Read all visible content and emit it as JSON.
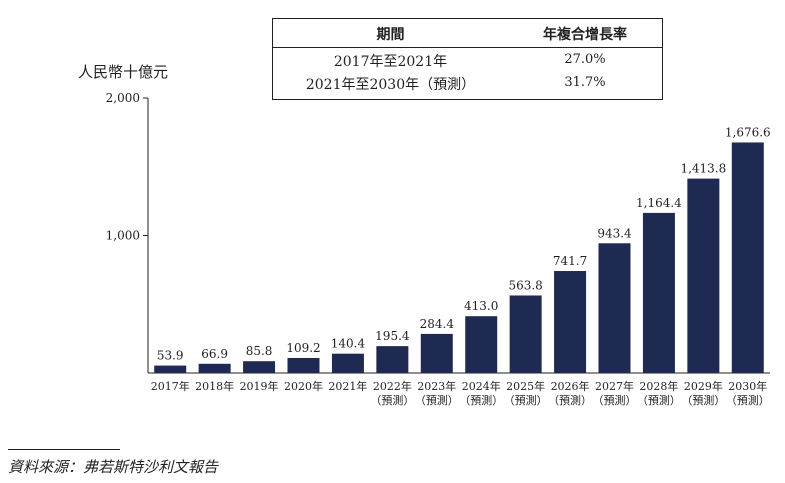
{
  "chart_data": {
    "type": "bar",
    "unit_label": "人民幣十億元",
    "categories": [
      [
        "2017年"
      ],
      [
        "2018年"
      ],
      [
        "2019年"
      ],
      [
        "2020年"
      ],
      [
        "2021年"
      ],
      [
        "2022年",
        "（預測）"
      ],
      [
        "2023年",
        "（預測）"
      ],
      [
        "2024年",
        "（預測）"
      ],
      [
        "2025年",
        "（預測）"
      ],
      [
        "2026年",
        "（預測）"
      ],
      [
        "2027年",
        "（預測）"
      ],
      [
        "2028年",
        "（預測）"
      ],
      [
        "2029年",
        "（預測）"
      ],
      [
        "2030年",
        "（預測）"
      ]
    ],
    "values": [
      53.9,
      66.9,
      85.8,
      109.2,
      140.4,
      195.4,
      284.4,
      413.0,
      563.8,
      741.7,
      943.4,
      1164.4,
      1413.8,
      1676.6
    ],
    "value_labels": [
      "53.9",
      "66.9",
      "85.8",
      "109.2",
      "140.4",
      "195.4",
      "284.4",
      "413.0",
      "563.8",
      "741.7",
      "943.4",
      "1,164.4",
      "1,413.8",
      "1,676.6"
    ],
    "ylim": [
      0,
      2000
    ],
    "yticks": [
      {
        "value": 1000,
        "label": "1,000"
      },
      {
        "value": 2000,
        "label": "2,000"
      }
    ],
    "bar_color": "#1f2a52",
    "grid": false
  },
  "cagr_table": {
    "headers": [
      "期間",
      "年複合增長率"
    ],
    "rows": [
      {
        "period": "2017年至2021年",
        "rate": "27.0%"
      },
      {
        "period": "2021年至2030年（預測）",
        "rate": "31.7%"
      }
    ]
  },
  "source": "資料來源：弗若斯特沙利文報告"
}
